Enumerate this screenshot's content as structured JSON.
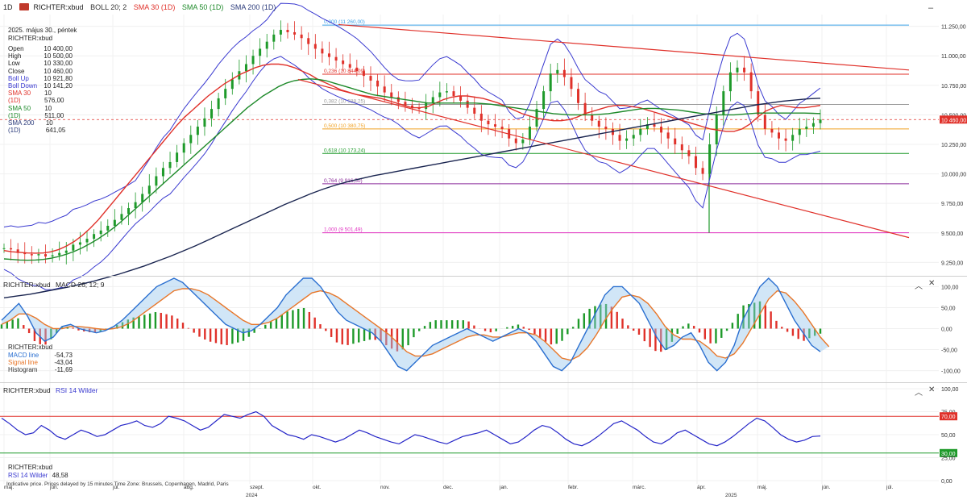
{
  "header": {
    "timeframe": "1D",
    "symbol": "RICHTER:xbud",
    "indicators": [
      {
        "label": "BOLL 20; 2",
        "color": "#333333"
      },
      {
        "label": "SMA 30 (1D)",
        "color": "#e0312a"
      },
      {
        "label": "SMA 50 (1D)",
        "color": "#1e8a2a"
      },
      {
        "label": "SMA 200 (1D)",
        "color": "#2a3a7a"
      }
    ]
  },
  "ohlc": {
    "date": "2025. május 30., péntek",
    "symbol": "RICHTER:xbud",
    "rows": [
      {
        "label": "Open",
        "value": "10 400,00",
        "color": "#222222"
      },
      {
        "label": "High",
        "value": "10 500,00",
        "color": "#222222"
      },
      {
        "label": "Low",
        "value": "10 330,00",
        "color": "#222222"
      },
      {
        "label": "Close",
        "value": "10 460,00",
        "color": "#222222"
      },
      {
        "label": "Boll Up",
        "value": "10 921,80",
        "color": "#3a3ad0"
      },
      {
        "label": "Boll Down",
        "value": "10 141,20",
        "color": "#3a3ad0"
      },
      {
        "label": "SMA 30 (1D)",
        "value": "10 576,00",
        "color": "#e0312a"
      },
      {
        "label": "SMA 50 (1D)",
        "value": "10 511,00",
        "color": "#1e8a2a"
      },
      {
        "label": "SMA 200 (1D)",
        "value": "10 641,05",
        "color": "#2a3a7a"
      }
    ]
  },
  "macd": {
    "title": "RICHTER:xbud",
    "label": "MACD 26; 12; 9",
    "legend_symbol": "RICHTER:xbud",
    "rows": [
      {
        "label": "MACD line",
        "value": "-54,73",
        "color": "#2a6fd0"
      },
      {
        "label": "Signal line",
        "value": "-43,04",
        "color": "#e8772a"
      },
      {
        "label": "Histogram",
        "value": "-11,69",
        "color": "#333333"
      }
    ]
  },
  "rsi": {
    "title": "RICHTER:xbud",
    "label": "RSI 14 Wilder",
    "legend_symbol": "RICHTER:xbud",
    "legend_label": "RSI 14 Wilder",
    "legend_value": "48,58"
  },
  "footer": "Indicative price. Prices delayed by 15 minutes    Time Zone: Brussels, Copenhagen, Madrid, Paris",
  "buttons": {
    "minimize": "–",
    "collapse": "︿",
    "close": "✕",
    "expand": "⌃"
  },
  "chart_data": [
    {
      "type": "candlestick",
      "title": "RICHTER:xbud",
      "price_labels": [
        "11.250,00",
        "11.000,00",
        "10.750,00",
        "10.500,00",
        "10.250,00",
        "10.000,00",
        "9.750,00",
        "9.500,00",
        "9.250,00"
      ],
      "price_ticks": [
        11250,
        11000,
        10750,
        10500,
        10250,
        10000,
        9750,
        9500,
        9250
      ],
      "ylim": [
        9150,
        11350
      ],
      "x_months": [
        "máj.",
        "jún.",
        "júl.",
        "aug.",
        "szept.",
        "okt.",
        "nov.",
        "dec.",
        "jan.",
        "febr.",
        "márc.",
        "ápr.",
        "máj.",
        "jún.",
        "júl."
      ],
      "x_years": [
        "2024",
        "2025"
      ],
      "last_price_label": "10 460,00",
      "last_price": 10460,
      "fibonacci": [
        {
          "label": "0,000 (11 260,00)",
          "value": 11260,
          "color": "#3aa0e8"
        },
        {
          "label": "0,236 (10 844,09)",
          "value": 10844,
          "color": "#e0312a"
        },
        {
          "label": "0,382 (10 588,25)",
          "value": 10588,
          "color": "#999999"
        },
        {
          "label": "0,500 (10 380,75)",
          "value": 10381,
          "color": "#f0a020"
        },
        {
          "label": "0,618 (10 173,24)",
          "value": 10173,
          "color": "#1e9a2a"
        },
        {
          "label": "0,764 (9 916,50)",
          "value": 9916,
          "color": "#8a2a9a"
        },
        {
          "label": "1,000 (9 501,49)",
          "value": 9501,
          "color": "#e030c0"
        }
      ],
      "close_series": [
        9370,
        9360,
        9330,
        9320,
        9310,
        9320,
        9300,
        9310,
        9330,
        9350,
        9400,
        9420,
        9450,
        9490,
        9520,
        9560,
        9610,
        9660,
        9710,
        9760,
        9830,
        9900,
        9980,
        10050,
        10100,
        10180,
        10260,
        10330,
        10400,
        10470,
        10550,
        10640,
        10720,
        10800,
        10870,
        10930,
        11000,
        11060,
        11120,
        11180,
        11220,
        11200,
        11180,
        11150,
        11100,
        11060,
        11020,
        10990,
        10960,
        10930,
        10900,
        10870,
        10830,
        10790,
        10740,
        10690,
        10650,
        10610,
        10580,
        10560,
        10550,
        10600,
        10650,
        10690,
        10700,
        10660,
        10620,
        10560,
        10510,
        10450,
        10420,
        10400,
        10380,
        10300,
        10260,
        10290,
        10400,
        10550,
        10700,
        10850,
        10880,
        10820,
        10720,
        10600,
        10500,
        10450,
        10400,
        10380,
        10330,
        10280,
        10300,
        10330,
        10380,
        10420,
        10400,
        10350,
        10300,
        10250,
        10200,
        10150,
        10050,
        10000,
        10250,
        10500,
        10700,
        10860,
        10900,
        10860,
        10700,
        10500,
        10380,
        10350,
        10300,
        10280,
        10330,
        10380,
        10400,
        10430,
        10460
      ],
      "sma30": [
        9350,
        9340,
        9335,
        9330,
        9328,
        9330,
        9340,
        9360,
        9390,
        9430,
        9480,
        9540,
        9610,
        9690,
        9770,
        9850,
        9930,
        10010,
        10090,
        10170,
        10250,
        10330,
        10410,
        10480,
        10540,
        10600,
        10660,
        10710,
        10760,
        10800,
        10840,
        10870,
        10900,
        10920,
        10930,
        10930,
        10920,
        10900,
        10870,
        10840,
        10800,
        10770,
        10740,
        10710,
        10690,
        10670,
        10660,
        10650,
        10640,
        10620,
        10600,
        10580,
        10560,
        10560,
        10570,
        10600,
        10630,
        10650,
        10660,
        10660,
        10650,
        10640,
        10620,
        10600,
        10570,
        10540,
        10510,
        10490,
        10470,
        10460,
        10450,
        10450,
        10460,
        10480,
        10510,
        10530,
        10550,
        10570,
        10580,
        10580,
        10570,
        10560,
        10540,
        10520,
        10500,
        10480,
        10460,
        10440,
        10420,
        10400,
        10380,
        10370,
        10360,
        10360,
        10380,
        10420,
        10480,
        10530,
        10560,
        10580,
        10570,
        10560,
        10560,
        10570,
        10580
      ],
      "sma50": [
        9280,
        9275,
        9270,
        9268,
        9270,
        9275,
        9285,
        9300,
        9320,
        9345,
        9375,
        9410,
        9450,
        9495,
        9545,
        9600,
        9660,
        9720,
        9780,
        9840,
        9900,
        9960,
        10020,
        10080,
        10140,
        10200,
        10260,
        10320,
        10380,
        10440,
        10500,
        10560,
        10610,
        10660,
        10700,
        10740,
        10770,
        10790,
        10800,
        10805,
        10800,
        10790,
        10770,
        10750,
        10730,
        10710,
        10690,
        10670,
        10660,
        10650,
        10640,
        10630,
        10620,
        10610,
        10600,
        10600,
        10600,
        10600,
        10600,
        10600,
        10600,
        10595,
        10590,
        10580,
        10570,
        10560,
        10550,
        10540,
        10530,
        10520,
        10510,
        10505,
        10500,
        10500,
        10500,
        10500,
        10505,
        10510,
        10520,
        10530,
        10540,
        10550,
        10555,
        10555,
        10550,
        10545,
        10540,
        10530,
        10520,
        10510,
        10505,
        10500,
        10500,
        10500,
        10505,
        10510,
        10515,
        10515,
        10515,
        10515,
        10515,
        10515,
        10515,
        10513,
        10511
      ],
      "sma200": [
        8950,
        8965,
        8980,
        9000,
        9020,
        9040,
        9065,
        9090,
        9120,
        9150,
        9185,
        9220,
        9260,
        9300,
        9345,
        9390,
        9440,
        9490,
        9540,
        9590,
        9640,
        9690,
        9740,
        9785,
        9830,
        9870,
        9905,
        9935,
        9960,
        9985,
        10005,
        10025,
        10045,
        10065,
        10085,
        10105,
        10125,
        10145,
        10165,
        10185,
        10205,
        10225,
        10245,
        10265,
        10285,
        10305,
        10325,
        10345,
        10365,
        10385,
        10405,
        10425,
        10445,
        10465,
        10485,
        10505,
        10525,
        10545,
        10565,
        10585,
        10600,
        10615,
        10625,
        10635,
        10641
      ]
    },
    {
      "type": "line",
      "title": "MACD 26; 12; 9",
      "tick_labels": [
        "100,00",
        "50,00",
        "0,00",
        "-50,00",
        "-100,00"
      ],
      "ticks": [
        100,
        50,
        0,
        -50,
        -100
      ],
      "ylim": [
        -120,
        120
      ],
      "series": [
        {
          "name": "MACD line",
          "values": [
            20,
            40,
            60,
            30,
            -10,
            -30,
            -20,
            5,
            10,
            0,
            -5,
            -10,
            -5,
            5,
            20,
            40,
            60,
            80,
            100,
            110,
            120,
            110,
            90,
            70,
            50,
            30,
            10,
            0,
            -10,
            -5,
            10,
            30,
            50,
            80,
            100,
            120,
            120,
            100,
            70,
            40,
            20,
            10,
            0,
            -10,
            -30,
            -60,
            -90,
            -100,
            -80,
            -60,
            -40,
            -30,
            -20,
            -10,
            0,
            -10,
            -20,
            -30,
            -20,
            -10,
            0,
            -10,
            -30,
            -60,
            -90,
            -100,
            -80,
            -40,
            0,
            40,
            80,
            100,
            100,
            80,
            60,
            20,
            -20,
            -50,
            -40,
            -20,
            -10,
            -40,
            -80,
            -100,
            -80,
            -40,
            20,
            60,
            100,
            120,
            100,
            60,
            20,
            -10,
            -40,
            -55
          ]
        },
        {
          "name": "Signal line",
          "values": [
            10,
            20,
            35,
            35,
            25,
            10,
            0,
            0,
            5,
            5,
            3,
            0,
            -2,
            0,
            5,
            15,
            30,
            45,
            60,
            75,
            90,
            95,
            95,
            90,
            80,
            65,
            50,
            35,
            20,
            10,
            10,
            15,
            25,
            40,
            55,
            70,
            85,
            90,
            85,
            75,
            60,
            45,
            30,
            15,
            0,
            -15,
            -35,
            -55,
            -65,
            -65,
            -60,
            -50,
            -40,
            -30,
            -20,
            -15,
            -15,
            -20,
            -20,
            -15,
            -10,
            -10,
            -15,
            -30,
            -50,
            -70,
            -75,
            -65,
            -45,
            -15,
            20,
            50,
            75,
            80,
            75,
            60,
            35,
            5,
            -15,
            -25,
            -25,
            -30,
            -45,
            -65,
            -70,
            -60,
            -35,
            0,
            35,
            70,
            90,
            85,
            65,
            40,
            10,
            -20,
            -43
          ]
        },
        {
          "name": "Histogram",
          "values": [
            10,
            20,
            25,
            -5,
            -35,
            -40,
            -20,
            5,
            5,
            -5,
            -8,
            -10,
            -3,
            5,
            15,
            25,
            30,
            35,
            40,
            35,
            30,
            15,
            -5,
            -20,
            -30,
            -35,
            -40,
            -35,
            -30,
            -15,
            0,
            15,
            25,
            40,
            45,
            50,
            35,
            10,
            -15,
            -35,
            -40,
            -35,
            -30,
            -25,
            -30,
            -45,
            -55,
            -45,
            -15,
            5,
            20,
            20,
            20,
            20,
            20,
            5,
            -5,
            -10,
            0,
            5,
            10,
            0,
            -15,
            -30,
            -40,
            -30,
            -5,
            25,
            45,
            55,
            60,
            50,
            25,
            0,
            -15,
            -40,
            -55,
            -55,
            -25,
            5,
            15,
            -10,
            -35,
            -35,
            -10,
            20,
            55,
            60,
            65,
            50,
            15,
            -5,
            -20,
            -30,
            -20,
            -12
          ]
        }
      ]
    },
    {
      "type": "line",
      "title": "RSI 14 Wilder",
      "tick_labels": [
        "100,00",
        "75,00",
        "70,00",
        "50,00",
        "30,00",
        "25,00",
        "0,00"
      ],
      "ticks": [
        100,
        75,
        70,
        50,
        30,
        25,
        0
      ],
      "ylim": [
        0,
        100
      ],
      "thresholds": [
        {
          "label": "70,00",
          "value": 70,
          "color": "#e0312a"
        },
        {
          "label": "30,00",
          "value": 30,
          "color": "#1e9a2a"
        }
      ],
      "series": [
        {
          "name": "RSI 14 Wilder",
          "values": [
            68,
            62,
            55,
            50,
            52,
            60,
            55,
            48,
            45,
            50,
            55,
            52,
            48,
            50,
            55,
            60,
            62,
            65,
            60,
            58,
            62,
            70,
            68,
            65,
            60,
            55,
            58,
            65,
            72,
            70,
            68,
            72,
            75,
            70,
            60,
            55,
            50,
            48,
            45,
            50,
            48,
            45,
            42,
            45,
            50,
            55,
            52,
            48,
            45,
            42,
            40,
            45,
            50,
            48,
            45,
            42,
            40,
            44,
            48,
            50,
            52,
            55,
            50,
            45,
            40,
            42,
            48,
            55,
            60,
            58,
            52,
            45,
            40,
            38,
            42,
            48,
            55,
            62,
            65,
            60,
            55,
            48,
            42,
            40,
            45,
            52,
            55,
            50,
            45,
            40,
            38,
            42,
            48,
            55,
            62,
            68,
            65,
            58,
            50,
            45,
            42,
            44,
            48,
            48.58
          ]
        }
      ]
    }
  ]
}
